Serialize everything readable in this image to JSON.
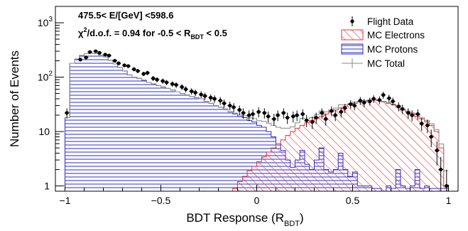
{
  "chart_data": {
    "type": "bar",
    "xlabel_main": "BDT Response (R",
    "xlabel_sub": "BDT",
    "xlabel_close": ")",
    "ylabel": "Number of Events",
    "y_scale": "log",
    "xlim": [
      -1.05,
      1.05
    ],
    "ylim": [
      0.8,
      2000
    ],
    "x_ticks": [
      "−1",
      "−0.5",
      "0",
      "0.5",
      "1"
    ],
    "x_tick_values": [
      -1,
      -0.5,
      0,
      0.5,
      1
    ],
    "y_ticks": [
      "1",
      "10",
      "10",
      "10"
    ],
    "y_tick_values": [
      1,
      10,
      100,
      1000
    ],
    "y_tick_exponents": [
      "",
      "",
      "2",
      "3"
    ],
    "annotation_energy": "475.5< E/[GeV] <598.6",
    "annotation_chi2": {
      "chi": "χ",
      "chi_sup": "2",
      "dof": "/d.o.f. = 0.94   for -0.5 < R",
      "r_sub": "BDT",
      "range_end": " < 0.5"
    },
    "legend": [
      {
        "label": "Flight Data",
        "style": "marker"
      },
      {
        "label": "MC Electrons",
        "style": "hatch-diag",
        "color": "#e8343c"
      },
      {
        "label": "MC Protons",
        "style": "hatch-horiz",
        "color": "#2d2dc8"
      },
      {
        "label": "MC Total",
        "style": "line",
        "color": "#888888"
      }
    ],
    "bins": {
      "start": -1.0,
      "width": 0.025,
      "count": 80
    },
    "series": [
      {
        "name": "MC Protons",
        "color": "#2d2dc8",
        "values": [
          18,
          180,
          215,
          250,
          270,
          275,
          270,
          255,
          235,
          205,
          175,
          150,
          130,
          110,
          100,
          95,
          88,
          80,
          75,
          70,
          66,
          62,
          58,
          54,
          50,
          47,
          44,
          42,
          40,
          36,
          33,
          30,
          28,
          26,
          23,
          21,
          19,
          18,
          16,
          15,
          13,
          12,
          10,
          8,
          6,
          4.5,
          3,
          2.2,
          3,
          4.5,
          2.5,
          2,
          3,
          5,
          2,
          1.8,
          2,
          4,
          2,
          1.5,
          1.8,
          1,
          1,
          1,
          0.9,
          0.9,
          0.8,
          1,
          0.9,
          2,
          1,
          0.9,
          1,
          2,
          0.9,
          1,
          0.9,
          0.9,
          0.9,
          0.9
        ]
      },
      {
        "name": "MC Electrons",
        "color": "#e8343c",
        "values": [
          0,
          0,
          0,
          0,
          0,
          0,
          0,
          0,
          0,
          0,
          0,
          0,
          0,
          0,
          0,
          0,
          0,
          0,
          0,
          0,
          0,
          0,
          0,
          0,
          0,
          0,
          0,
          0,
          0,
          0,
          0,
          0,
          0,
          0,
          0,
          0.9,
          1.2,
          1.5,
          1.9,
          2.3,
          2.8,
          3.4,
          4.2,
          5,
          6,
          7,
          8.5,
          10,
          11.5,
          13,
          14.5,
          16,
          17.5,
          19,
          21,
          23,
          25,
          27,
          29,
          31,
          33,
          35,
          36,
          37,
          38,
          37,
          35,
          33,
          31,
          28,
          25,
          23,
          21,
          19,
          17,
          15,
          13,
          10,
          5,
          1
        ]
      },
      {
        "name": "MC Total",
        "color": "#888888",
        "values": [
          18,
          180,
          215,
          250,
          270,
          275,
          270,
          255,
          235,
          205,
          175,
          150,
          130,
          110,
          100,
          95,
          88,
          80,
          75,
          70,
          66,
          62,
          58,
          54,
          50,
          47,
          44,
          42,
          40,
          36,
          33,
          30,
          28,
          26,
          23,
          21.9,
          20.2,
          19.5,
          17.9,
          17.3,
          15.8,
          15.4,
          14.2,
          13,
          12,
          11.5,
          11.5,
          12.2,
          14.5,
          17.5,
          17,
          18,
          20.5,
          24,
          23,
          24.8,
          27,
          31,
          31,
          32.5,
          34.8,
          36,
          37,
          38,
          38.9,
          37.9,
          35.8,
          34,
          31.9,
          30,
          26,
          23.9,
          22,
          21,
          17.9,
          16,
          13.9,
          10.9,
          5.9,
          1.9
        ]
      },
      {
        "name": "Flight Data",
        "x": [
          -0.99,
          -0.92,
          -0.89,
          -0.87,
          -0.84,
          -0.82,
          -0.79,
          -0.77,
          -0.74,
          -0.72,
          -0.69,
          -0.67,
          -0.64,
          -0.62,
          -0.59,
          -0.57,
          -0.54,
          -0.52,
          -0.49,
          -0.47,
          -0.44,
          -0.42,
          -0.39,
          -0.37,
          -0.34,
          -0.32,
          -0.29,
          -0.27,
          -0.24,
          -0.22,
          -0.19,
          -0.17,
          -0.14,
          -0.12,
          -0.09,
          -0.07,
          -0.04,
          -0.02,
          0.01,
          0.04,
          0.06,
          0.09,
          0.11,
          0.14,
          0.16,
          0.19,
          0.21,
          0.24,
          0.26,
          0.29,
          0.31,
          0.34,
          0.36,
          0.39,
          0.41,
          0.44,
          0.46,
          0.49,
          0.51,
          0.54,
          0.56,
          0.59,
          0.61,
          0.64,
          0.66,
          0.69,
          0.71,
          0.74,
          0.76,
          0.79,
          0.81,
          0.84,
          0.86,
          0.89,
          0.91,
          0.94,
          0.96,
          0.99
        ],
        "values": [
          22,
          210,
          230,
          290,
          300,
          280,
          260,
          250,
          200,
          180,
          165,
          160,
          140,
          130,
          115,
          120,
          95,
          90,
          85,
          80,
          75,
          72,
          66,
          60,
          55,
          52,
          48,
          45,
          42,
          40,
          37,
          33,
          30,
          28,
          25,
          22,
          20,
          21,
          23,
          22,
          19,
          17,
          20,
          22,
          18,
          19,
          20,
          21,
          16,
          15,
          18,
          22,
          17,
          24,
          20,
          23,
          27,
          32,
          30,
          37,
          34,
          36,
          40,
          38,
          47,
          41,
          36,
          29,
          26,
          22,
          20,
          21,
          14,
          13,
          8,
          4.5,
          2,
          1
        ]
      }
    ]
  }
}
